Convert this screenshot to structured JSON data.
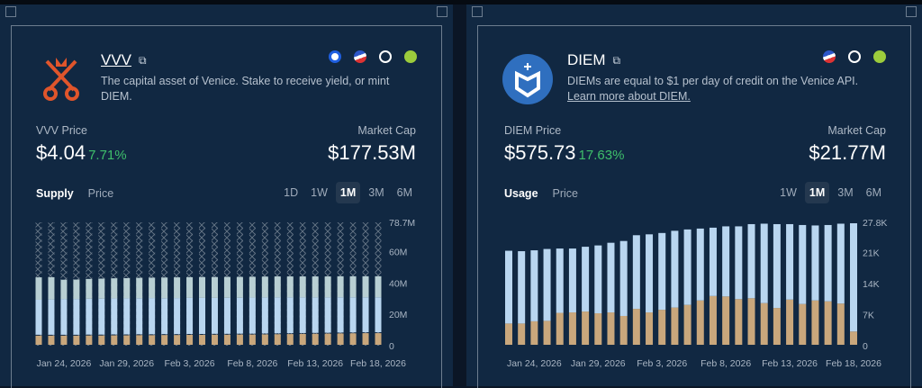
{
  "vvv": {
    "name": "VVV",
    "description": "The capital asset of Venice. Stake to receive yield, or mint DIEM.",
    "price_label": "VVV Price",
    "price": "$4.04",
    "change": "7.71%",
    "mcap_label": "Market Cap",
    "mcap": "$177.53M",
    "tabs": [
      "Supply",
      "Price"
    ],
    "active_tab": "Supply",
    "ranges": [
      "1D",
      "1W",
      "1M",
      "3M",
      "6M"
    ],
    "active_range": "1M",
    "icons": [
      "coinbase-icon",
      "exchange-icon",
      "coinmarketcap-icon",
      "coingecko-icon"
    ],
    "logo_color": "#e0552b"
  },
  "diem": {
    "name": "DIEM",
    "description": "DIEMs are equal to $1 per day of credit on the Venice API.",
    "link": "Learn more about DIEM.",
    "price_label": "DIEM Price",
    "price": "$575.73",
    "change": "17.63%",
    "mcap_label": "Market Cap",
    "mcap": "$21.77M",
    "tabs": [
      "Usage",
      "Price"
    ],
    "active_tab": "Usage",
    "ranges": [
      "1W",
      "1M",
      "3M",
      "6M"
    ],
    "active_range": "1M",
    "icons": [
      "exchange-icon",
      "coinmarketcap-icon",
      "coingecko-icon"
    ],
    "logo_color": "#2f6fbf"
  },
  "chart_data": [
    {
      "type": "bar",
      "stacked": true,
      "ylim": [
        0,
        78.7
      ],
      "yticks": [
        "0",
        "20M",
        "40M",
        "60M",
        "78.7M"
      ],
      "xticks": [
        "Jan 24, 2026",
        "Jan 29, 2026",
        "Feb 3, 2026",
        "Feb 8, 2026",
        "Feb 13, 2026",
        "Feb 18, 2026"
      ],
      "colors": [
        "#c9a77c",
        "#b9d6f0",
        "#b8cfd3",
        "hatched"
      ],
      "series": [
        {
          "values": [
            6.4,
            6.4,
            6.4,
            6.4,
            6.5,
            6.5,
            6.6,
            6.6,
            6.7,
            6.7,
            6.8,
            6.8,
            6.9,
            6.9,
            7.0,
            7.0,
            7.1,
            7.1,
            7.2,
            7.3,
            7.4,
            7.5,
            7.6,
            7.7,
            7.8,
            7.9,
            8.0,
            8.0
          ]
        },
        {
          "values": [
            22.9,
            23.1,
            23.4,
            23.4,
            23.5,
            23.5,
            23.6,
            23.6,
            23.6,
            23.7,
            23.5,
            23.6,
            23.6,
            23.6,
            23.5,
            23.6,
            23.5,
            23.6,
            23.6,
            23.5,
            23.4,
            23.3,
            23.2,
            23.1,
            23.1,
            23.0,
            22.9,
            22.9
          ]
        },
        {
          "values": [
            14.3,
            14.2,
            12.3,
            12.4,
            12.6,
            12.8,
            12.8,
            12.9,
            13.0,
            13.0,
            13.2,
            13.2,
            13.2,
            13.3,
            13.3,
            13.3,
            13.3,
            13.3,
            13.3,
            13.4,
            13.4,
            13.4,
            13.4,
            13.4,
            13.4,
            13.4,
            13.4,
            13.4
          ]
        }
      ]
    },
    {
      "type": "bar",
      "stacked": true,
      "ylim": [
        0,
        27.8
      ],
      "yticks": [
        "0",
        "7K",
        "14K",
        "21K",
        "27.8K"
      ],
      "xticks": [
        "Jan 24, 2026",
        "Jan 29, 2026",
        "Feb 3, 2026",
        "Feb 8, 2026",
        "Feb 13, 2026",
        "Feb 18, 2026"
      ],
      "colors": [
        "#c9a77c",
        "#b9d6f0"
      ],
      "series": [
        {
          "values": [
            5.0,
            5.0,
            5.5,
            5.6,
            7.4,
            7.5,
            7.7,
            7.3,
            7.5,
            6.7,
            8.3,
            7.5,
            8.1,
            8.6,
            9.2,
            10.2,
            11.2,
            11.1,
            10.5,
            10.7,
            9.6,
            8.5,
            10.4,
            9.4,
            10.2,
            10.0,
            9.5,
            3.2
          ]
        },
        {
          "values": [
            16.4,
            16.3,
            16.0,
            16.2,
            14.5,
            14.4,
            14.6,
            15.3,
            15.7,
            16.9,
            16.6,
            17.6,
            17.3,
            17.3,
            17.0,
            16.2,
            15.4,
            15.8,
            16.4,
            16.7,
            17.9,
            18.9,
            17.0,
            17.8,
            16.9,
            17.2,
            18.0,
            24.4
          ]
        }
      ]
    }
  ]
}
